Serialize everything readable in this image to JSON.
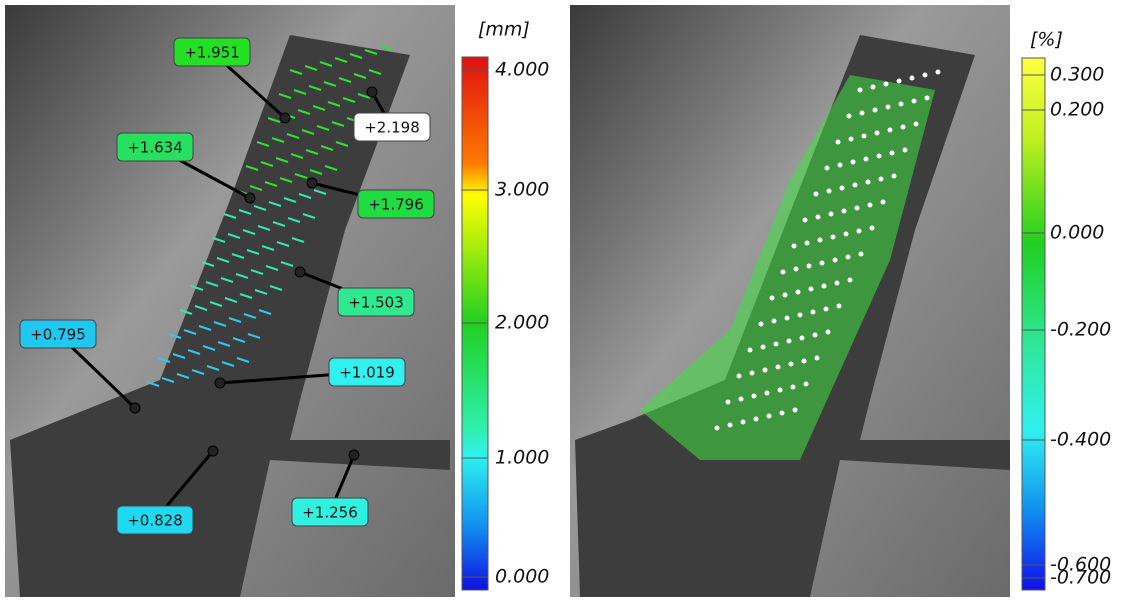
{
  "left_panel": {
    "unit": "[mm]",
    "scale_ticks": [
      "4.000",
      "3.000",
      "2.000",
      "1.000",
      "0.000"
    ],
    "annotations": [
      {
        "label": "+1.951",
        "color": "#22e022"
      },
      {
        "label": "+2.198",
        "color": "#ffffff"
      },
      {
        "label": "+1.634",
        "color": "#28e060"
      },
      {
        "label": "+1.796",
        "color": "#20dc40"
      },
      {
        "label": "+1.503",
        "color": "#30e890"
      },
      {
        "label": "+0.795",
        "color": "#20c8f0"
      },
      {
        "label": "+1.019",
        "color": "#30f0f0"
      },
      {
        "label": "+0.828",
        "color": "#20d8f0"
      },
      {
        "label": "+1.256",
        "color": "#30f0e0"
      }
    ]
  },
  "right_panel": {
    "unit": "[%]",
    "scale_ticks": [
      "0.300",
      "0.200",
      "0.000",
      "-0.200",
      "-0.400",
      "-0.600",
      "-0.700"
    ]
  }
}
